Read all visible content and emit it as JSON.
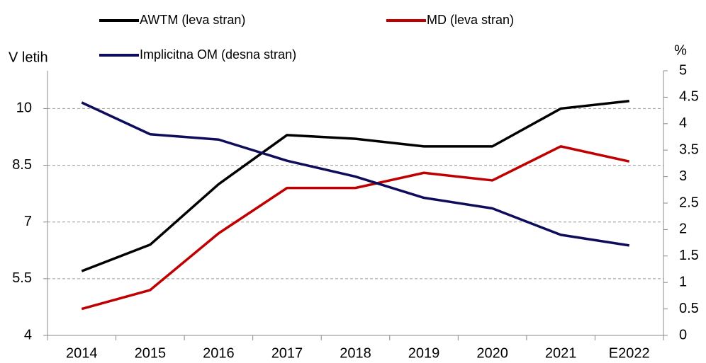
{
  "chart_data": {
    "type": "line",
    "ylabel": "V letih",
    "y2label": "%",
    "categories": [
      "2014",
      "2015",
      "2016",
      "2017",
      "2018",
      "2019",
      "2020",
      "2021",
      "E2022"
    ],
    "series": [
      {
        "name": "AWTM (leva stran)",
        "color": "#000000",
        "values": [
          5.7,
          6.4,
          8.0,
          9.3,
          9.2,
          9.0,
          9.0,
          10.0,
          10.2
        ]
      },
      {
        "name": "MD (leva stran)",
        "color": "#c00000",
        "values": [
          4.7,
          5.2,
          6.7,
          7.9,
          7.9,
          8.3,
          8.1,
          9.0,
          8.6
        ]
      },
      {
        "name": "Implicitna OM (desna stran)",
        "color": "#0d0d5c",
        "axis": "y2",
        "values": [
          4.4,
          3.8,
          3.7,
          3.3,
          3.0,
          2.6,
          2.4,
          1.9,
          1.7
        ]
      }
    ],
    "ylim": [
      4,
      11
    ],
    "yticks": [
      4,
      5.5,
      7,
      8.5,
      10
    ],
    "y2lim": [
      0,
      5
    ],
    "y2ticks": [
      0,
      0.5,
      1,
      1.5,
      2,
      2.5,
      3,
      3.5,
      4,
      4.5,
      5
    ],
    "grid": true
  }
}
